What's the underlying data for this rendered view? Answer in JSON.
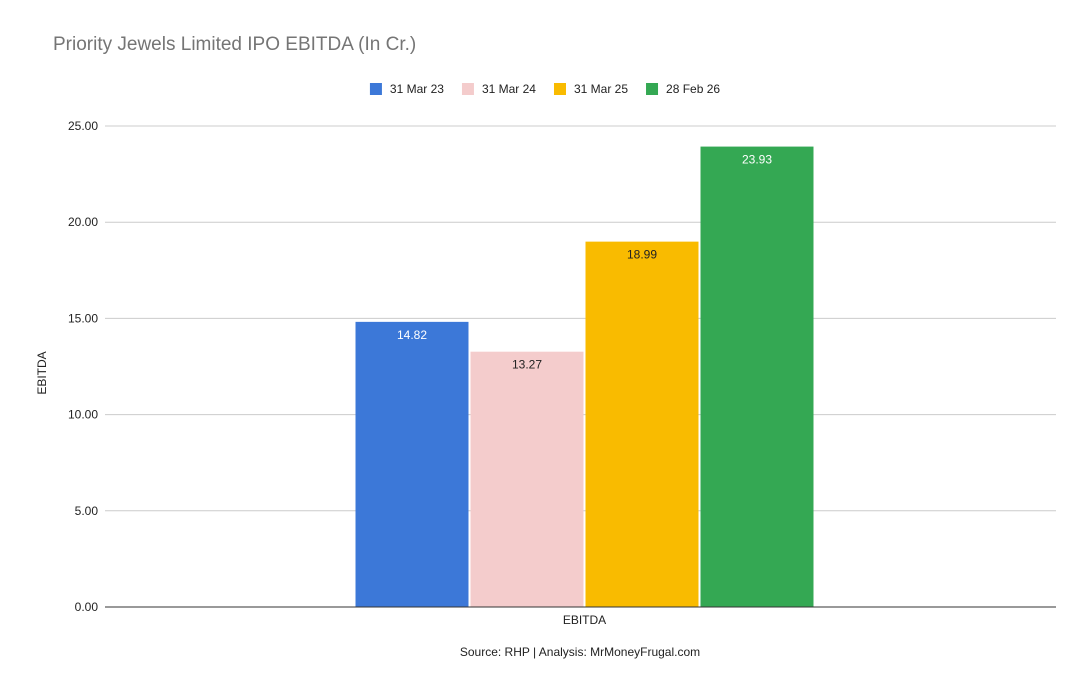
{
  "chart_data": {
    "type": "bar",
    "title": "Priority Jewels Limited IPO EBITDA (In Cr.)",
    "xlabel": "",
    "ylabel": "EBITDA",
    "categories": [
      "EBITDA"
    ],
    "series": [
      {
        "name": "31 Mar 23",
        "values": [
          14.82
        ],
        "color": "#3c78d8",
        "label_color": "#ffffff"
      },
      {
        "name": "31 Mar 24",
        "values": [
          13.27
        ],
        "color": "#f4cccc",
        "label_color": "#222222"
      },
      {
        "name": "31 Mar 25",
        "values": [
          18.99
        ],
        "color": "#f9bb00",
        "label_color": "#222222"
      },
      {
        "name": "28 Feb 26",
        "values": [
          23.93
        ],
        "color": "#34a853",
        "label_color": "#ffffff"
      }
    ],
    "ylim": [
      0,
      25
    ],
    "yticks": [
      "0.00",
      "5.00",
      "10.00",
      "15.00",
      "20.00",
      "25.00"
    ],
    "grid": true,
    "legend_position": "top-center",
    "source_note": "Source: RHP | Analysis: MrMoneyFrugal.com"
  }
}
